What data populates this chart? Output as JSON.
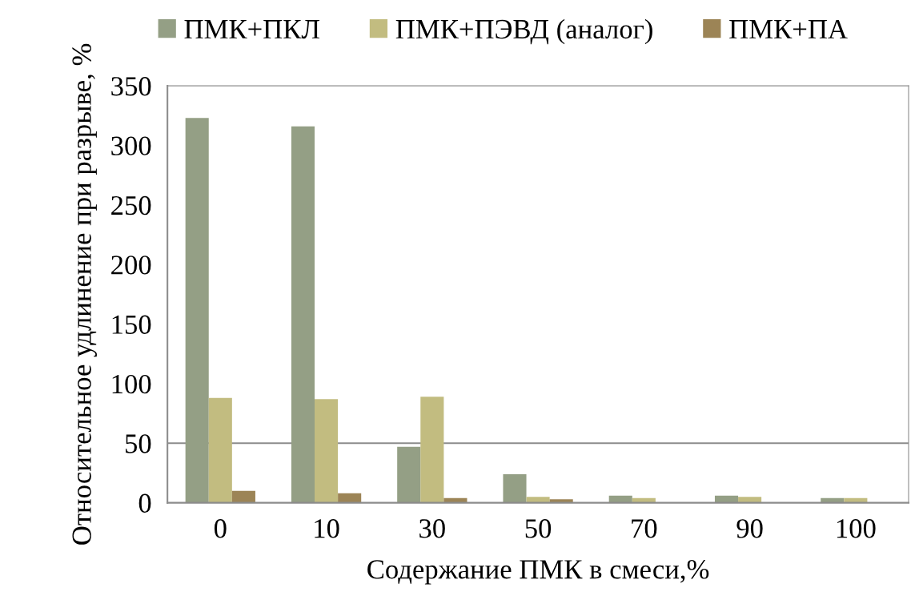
{
  "chart_data": {
    "type": "bar",
    "xlabel": "Содержание ПМК в смеси,%",
    "ylabel": "Относительное удлинение при разрыве, %",
    "categories": [
      "0",
      "10",
      "30",
      "50",
      "70",
      "90",
      "100"
    ],
    "series": [
      {
        "name": "ПМК+ПКЛ",
        "color": "#949f85",
        "values": [
          323,
          316,
          47,
          24,
          6,
          6,
          4
        ]
      },
      {
        "name": "ПМК+ПЭВД (аналог)",
        "color": "#c2bc80",
        "values": [
          88,
          87,
          89,
          5,
          4,
          5,
          4
        ]
      },
      {
        "name": "ПМК+ПА",
        "color": "#9c8456",
        "values": [
          10,
          8,
          4,
          3,
          null,
          null,
          null
        ]
      }
    ],
    "ylim": [
      0,
      350
    ],
    "yticks": [
      0,
      50,
      100,
      150,
      200,
      250,
      300,
      350
    ],
    "grid": false,
    "legend": "top",
    "ref_lines": [
      {
        "axis": "y",
        "value": 50,
        "color": "#8c8c8c"
      }
    ]
  }
}
